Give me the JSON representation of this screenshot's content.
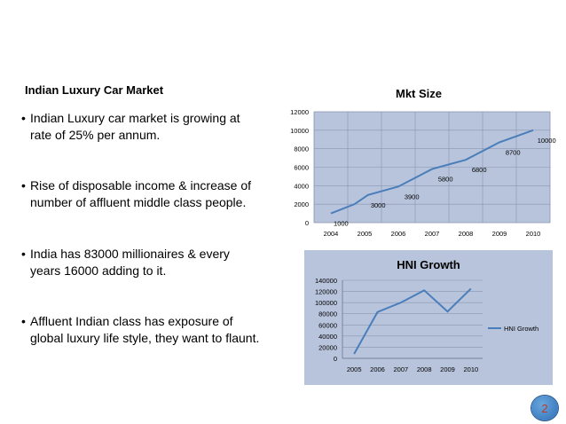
{
  "slide": {
    "heading": "Indian Luxury Car Market",
    "page_number": "2",
    "bullets": [
      "Indian Luxury car market is growing at\n rate of 25% per annum.",
      "Rise of disposable income & increase of\nnumber of affluent middle class people.",
      "India has 83000 millionaires & every\n years 16000 adding to it.",
      "Affluent Indian class has exposure of\nglobal luxury life style, they want to flaunt."
    ],
    "bullet_char": "•"
  },
  "chart_data": [
    {
      "type": "line",
      "title": "Mkt Size",
      "categories": [
        "2004",
        "2005",
        "2006",
        "2007",
        "2008",
        "2009",
        "2010"
      ],
      "series": [
        {
          "values": [
            1000,
            2000,
            3000,
            3900,
            5800,
            6800,
            8700,
            10000
          ]
        }
      ],
      "x": [
        2004,
        2004.7,
        2005.1,
        2006,
        2007,
        2008,
        2009,
        2010
      ],
      "data_labels": [
        {
          "x": 2004.3,
          "value": "1000"
        },
        {
          "x": 2005.4,
          "value": "3000"
        },
        {
          "x": 2006.4,
          "value": "3900"
        },
        {
          "x": 2007.4,
          "value": "5800"
        },
        {
          "x": 2008.4,
          "value": "6800"
        },
        {
          "x": 2009.4,
          "value": "8700"
        },
        {
          "x": 2010.4,
          "value": "10000"
        }
      ],
      "yticks": [
        "0",
        "2000",
        "4000",
        "6000",
        "8000",
        "10000",
        "12000"
      ],
      "ylim": [
        0,
        12000
      ],
      "grid": true,
      "legend": "none",
      "plot_bg": "#b8c4dc",
      "line_color": "#4a7ebb"
    },
    {
      "type": "line",
      "title": "HNI Growth",
      "categories": [
        "2005",
        "2006",
        "2007",
        "2008",
        "2009",
        "2010"
      ],
      "series": [
        {
          "name": "HNI Growth",
          "values": [
            8000,
            83000,
            100000,
            122000,
            84000,
            125000
          ]
        }
      ],
      "yticks": [
        "0",
        "20000",
        "40000",
        "60000",
        "80000",
        "100000",
        "120000",
        "140000"
      ],
      "ylim": [
        0,
        140000
      ],
      "grid": true,
      "legend": "right",
      "chart_bg": "#b8c4dc",
      "line_color": "#4a7ebb"
    }
  ]
}
